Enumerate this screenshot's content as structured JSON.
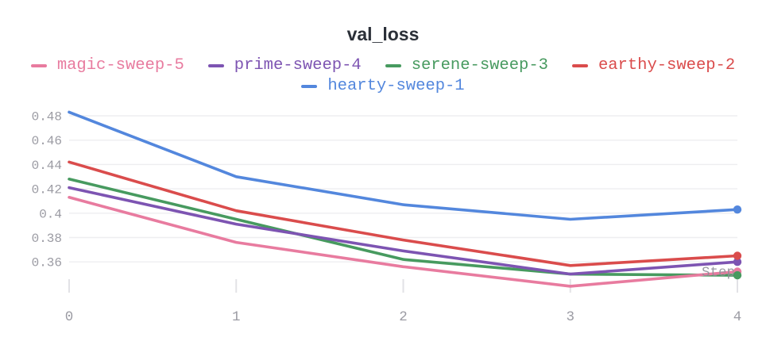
{
  "chart_data": {
    "type": "line",
    "title": "val_loss",
    "xlabel": "Step",
    "ylabel": "",
    "x": [
      0,
      1,
      2,
      3,
      4
    ],
    "x_tick_labels": [
      "0",
      "1",
      "2",
      "3",
      "4"
    ],
    "y_ticks": [
      0.48,
      0.46,
      0.44,
      0.42,
      0.4,
      0.38,
      0.36
    ],
    "y_tick_labels": [
      "0.48",
      "0.46",
      "0.44",
      "0.42",
      "0.4",
      "0.38",
      "0.36"
    ],
    "xlim": [
      0,
      4
    ],
    "ylim": [
      0.336,
      0.488
    ],
    "grid": true,
    "legend_position": "top",
    "end_point_markers": true,
    "series": [
      {
        "name": "magic-sweep-5",
        "color": "#E87B9F",
        "values": [
          0.413,
          0.376,
          0.356,
          0.34,
          0.352
        ]
      },
      {
        "name": "prime-sweep-4",
        "color": "#7D54B2",
        "values": [
          0.421,
          0.391,
          0.369,
          0.35,
          0.36
        ]
      },
      {
        "name": "serene-sweep-3",
        "color": "#479A5F",
        "values": [
          0.428,
          0.395,
          0.362,
          0.35,
          0.349
        ]
      },
      {
        "name": "earthy-sweep-2",
        "color": "#DA4C4C",
        "values": [
          0.442,
          0.402,
          0.378,
          0.357,
          0.365
        ]
      },
      {
        "name": "hearty-sweep-1",
        "color": "#5387DD",
        "values": [
          0.483,
          0.43,
          0.407,
          0.395,
          0.403
        ]
      }
    ],
    "style_colors": {
      "title_text": "#2b3038",
      "axis_text": "#9b9ba3",
      "gridline": "#eeeef0",
      "tick_mark": "#e2e2e6",
      "step_label_text": "#8f8f98",
      "background": "#ffffff"
    }
  }
}
